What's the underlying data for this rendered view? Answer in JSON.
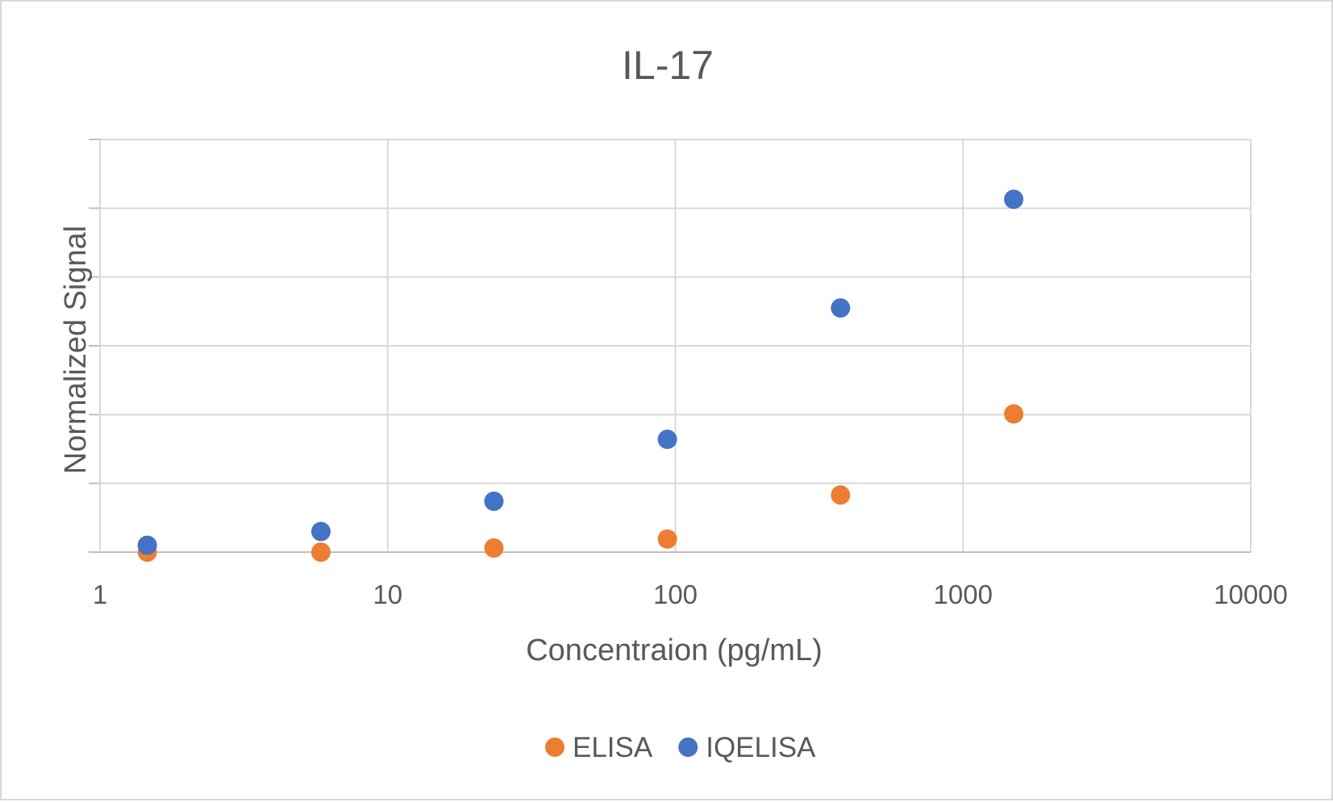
{
  "chart_data": {
    "type": "scatter",
    "title": "IL-17",
    "xlabel": "Concentraion (pg/mL)",
    "ylabel": "Normalized Signal",
    "x_scale": "log",
    "xlim": [
      1,
      10000
    ],
    "x_ticks": [
      "1",
      "10",
      "100",
      "1000",
      "10000"
    ],
    "y_tick_labels_shown": false,
    "y_gridlines": 6,
    "grid": true,
    "legend": "bottom",
    "series": [
      {
        "name": "ELISA",
        "color": "#ED7D31",
        "x": [
          1.46,
          5.86,
          23.4,
          93.8,
          375,
          1500
        ],
        "y": [
          0.0,
          0.0,
          0.06,
          0.19,
          0.83,
          2.01
        ]
      },
      {
        "name": "IQELISA",
        "color": "#4472C4",
        "x": [
          1.46,
          5.86,
          23.4,
          93.8,
          375,
          1500
        ],
        "y": [
          0.1,
          0.3,
          0.74,
          1.64,
          3.55,
          5.13
        ]
      }
    ]
  }
}
